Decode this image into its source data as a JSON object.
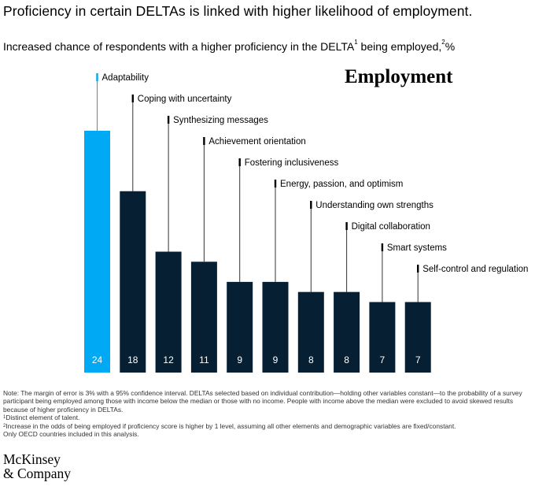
{
  "title": "Proficiency in certain DELTAs is linked with higher likelihood of employment.",
  "subtitle": {
    "main": "Increased chance of respondents with a higher proficiency in the DELTA",
    "sup1": "1",
    "tail": " being employed,",
    "sup2": "2",
    "unit": "%"
  },
  "panel_label": "Employment",
  "colors": {
    "highlight": "#00A9F4",
    "bar": "#061F33",
    "leader": "#333333",
    "value_text": "#ffffff"
  },
  "chart_data": {
    "type": "bar",
    "categories": [
      "Adaptability",
      "Coping with uncertainty",
      "Synthesizing messages",
      "Achievement orientation",
      "Fostering inclusiveness",
      "Energy, passion, and optimism",
      "Understanding own strengths",
      "Digital collaboration",
      "Smart systems",
      "Self-control and regulation"
    ],
    "values": [
      24,
      18,
      12,
      11,
      9,
      9,
      8,
      8,
      7,
      7
    ],
    "value_labels": [
      "24",
      "18",
      "12",
      "11",
      "9",
      "9",
      "8",
      "8",
      "7",
      "7"
    ],
    "highlighted_index": 0,
    "ylim": [
      0,
      24
    ],
    "grid": false,
    "legend": "none"
  },
  "notes": {
    "note": "Note: The margin of error is 3% with a 95% confidence interval. DELTAs selected based on individual contribution—holding other variables constant—to the probability of a survey participant being employed among those with income below the median or those with no income. People with income above the median were excluded to avoid skewed results because of higher proficiency in DELTAs.",
    "fn1_marker": "1",
    "fn1": "Distinct element of talent.",
    "fn2_marker": "2",
    "fn2": "Increase in the odds of being employed if proficiency score is higher by 1 level, assuming all other elements and demographic variables are fixed/constant.",
    "fn2b": "Only OECD countries included in this analysis."
  },
  "logo": {
    "line1": "McKinsey",
    "line2": "& Company"
  }
}
